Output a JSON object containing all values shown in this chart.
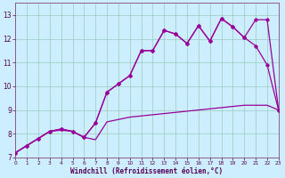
{
  "xlabel": "Windchill (Refroidissement éolien,°C)",
  "bg_color": "#cceeff",
  "grid_color": "#99ccbb",
  "line_color": "#990099",
  "series1_x": [
    0,
    1,
    2,
    3,
    4,
    5,
    6,
    7,
    8,
    9,
    10,
    11,
    12,
    13,
    14,
    15,
    16,
    17,
    18,
    19,
    20,
    21,
    22,
    23
  ],
  "series1_y": [
    7.2,
    7.5,
    7.8,
    8.1,
    8.15,
    8.1,
    7.85,
    7.75,
    8.5,
    8.6,
    8.7,
    8.75,
    8.8,
    8.85,
    8.9,
    8.95,
    9.0,
    9.05,
    9.1,
    9.15,
    9.2,
    9.2,
    9.2,
    9.0
  ],
  "series2_x": [
    0,
    1,
    2,
    3,
    4,
    5,
    6,
    7,
    8,
    9,
    10,
    11,
    12,
    13,
    14,
    15,
    16,
    17,
    18,
    19,
    20,
    21,
    22,
    23
  ],
  "series2_y": [
    7.2,
    7.5,
    7.8,
    8.1,
    8.2,
    8.1,
    7.85,
    8.45,
    9.75,
    10.1,
    10.45,
    11.5,
    11.5,
    12.35,
    12.2,
    11.8,
    12.55,
    11.9,
    12.85,
    12.5,
    12.05,
    12.8,
    12.8,
    9.0
  ],
  "series3_x": [
    0,
    1,
    2,
    3,
    4,
    5,
    6,
    7,
    8,
    9,
    10,
    11,
    12,
    13,
    14,
    15,
    16,
    17,
    18,
    19,
    20,
    21,
    22,
    23
  ],
  "series3_y": [
    7.2,
    7.5,
    7.8,
    8.1,
    8.2,
    8.1,
    7.85,
    8.45,
    9.75,
    10.1,
    10.45,
    11.5,
    11.5,
    12.35,
    12.2,
    11.8,
    12.55,
    11.9,
    12.85,
    12.5,
    12.05,
    11.7,
    10.9,
    9.0
  ],
  "xlim": [
    0,
    23
  ],
  "ylim": [
    7.0,
    13.5
  ],
  "yticks": [
    7,
    8,
    9,
    10,
    11,
    12,
    13
  ],
  "xticks": [
    0,
    1,
    2,
    3,
    4,
    5,
    6,
    7,
    8,
    9,
    10,
    11,
    12,
    13,
    14,
    15,
    16,
    17,
    18,
    19,
    20,
    21,
    22,
    23
  ]
}
